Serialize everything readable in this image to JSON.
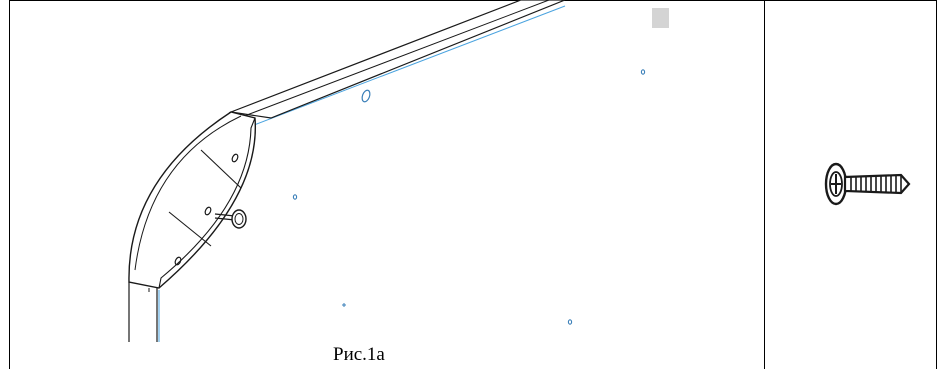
{
  "figure": {
    "caption": "Рис.1а"
  },
  "colors": {
    "line": "#1a1a1a",
    "guide": "#4aa3df",
    "marker": "#cfcfcf"
  },
  "icons": {
    "assembly": "cabinet-corner-assembly-drawing",
    "screw": "screw-icon"
  }
}
